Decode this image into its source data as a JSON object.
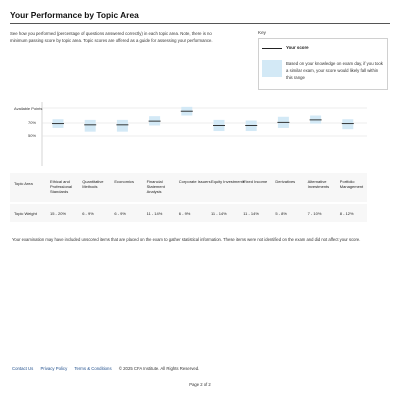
{
  "header": {
    "title": "Your Performance by Topic Area"
  },
  "intro": {
    "text": "See how you performed (percentage of questions answered correctly) in each topic area. Note, there is no minimum passing score by topic area. Topic scores are offered as a guide for assessing your performance."
  },
  "key": {
    "title": "Key",
    "score_label": "Your score",
    "range_label": "Based on your knowledge on exam day, if you took a similar exam, your score would likely fall within this range",
    "score_line_color": "#222222",
    "range_color": "#d3e9f6"
  },
  "chart_data": {
    "type": "range-marker",
    "y_labels": [
      "Available Points",
      "70%",
      "50%"
    ],
    "categories": [
      "Ethical and Professional Standards",
      "Quantitative Methods",
      "Economics",
      "Financial Statement Analysis",
      "Corporate Issuers",
      "Equity Investments",
      "Fixed Income",
      "Derivatives",
      "Alternative Investments",
      "Portfolio Management"
    ],
    "series": [
      {
        "values": [
          70,
          68,
          68,
          74,
          90,
          67,
          67,
          72,
          76,
          70
        ]
      }
    ],
    "range_low": [
      63,
      57,
      57,
      67,
      83,
      58,
      58,
      63,
      70,
      61
    ],
    "range_high": [
      77,
      76,
      76,
      82,
      97,
      76,
      75,
      81,
      83,
      77
    ],
    "ylim": [
      0,
      100
    ]
  },
  "table": {
    "topic_area_label": "Topic Area",
    "topic_weight_label": "Topic Weight",
    "topics": [
      {
        "name": "Ethical and Professional Standards",
        "weight": "15 - 20%"
      },
      {
        "name": "Quantitative Methods",
        "weight": "6 - 9%"
      },
      {
        "name": "Economics",
        "weight": "6 - 9%"
      },
      {
        "name": "Financial Statement Analysis",
        "weight": "11 - 14%"
      },
      {
        "name": "Corporate Issuers",
        "weight": "6 - 9%"
      },
      {
        "name": "Equity Investments",
        "weight": "11 - 14%"
      },
      {
        "name": "Fixed Income",
        "weight": "11 - 14%"
      },
      {
        "name": "Derivatives",
        "weight": "5 - 8%"
      },
      {
        "name": "Alternative Investments",
        "weight": "7 - 10%"
      },
      {
        "name": "Portfolio Management",
        "weight": "8 - 12%"
      }
    ]
  },
  "disclaimer": {
    "text": "Your examination may have included unscored items that are placed on the exam to gather statistical information. These items were not identified on the exam and did not affect your score."
  },
  "footer": {
    "contact": "Contact Us",
    "privacy": "Privacy Policy",
    "terms": "Terms & Conditions",
    "copyright": "© 2025 CFA Institute.  All Rights Reserved."
  },
  "page": {
    "label": "Page 2 of 2"
  }
}
